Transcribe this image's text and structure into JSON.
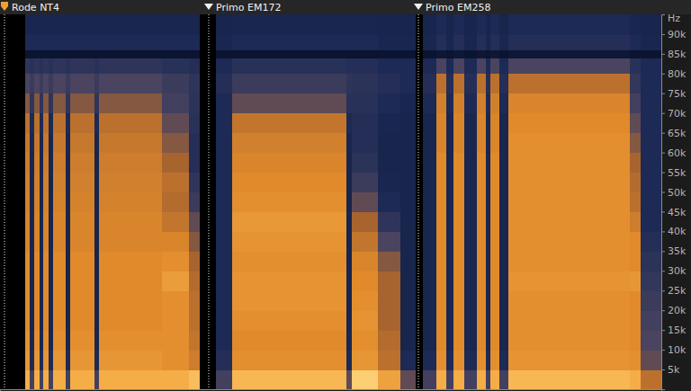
{
  "chart_data": {
    "type": "heatmap",
    "y_label": "Hz",
    "tick_labels": "y",
    "xlim": [
      0,
      73.5
    ],
    "ylim": [
      0,
      95000
    ],
    "zlim": [
      0,
      1
    ],
    "yticks": [
      {
        "value": 5000,
        "label": "5k"
      },
      {
        "value": 10000,
        "label": "10k"
      },
      {
        "value": 15000,
        "label": "15k"
      },
      {
        "value": 20000,
        "label": "20k"
      },
      {
        "value": 25000,
        "label": "25k"
      },
      {
        "value": 30000,
        "label": "30k"
      },
      {
        "value": 35000,
        "label": "35k"
      },
      {
        "value": 40000,
        "label": "40k"
      },
      {
        "value": 45000,
        "label": "45k"
      },
      {
        "value": 50000,
        "label": "50k"
      },
      {
        "value": 55000,
        "label": "55k"
      },
      {
        "value": 60000,
        "label": "60k"
      },
      {
        "value": 65000,
        "label": "65k"
      },
      {
        "value": 70000,
        "label": "70k"
      },
      {
        "value": 75000,
        "label": "75k"
      },
      {
        "value": 80000,
        "label": "80k"
      },
      {
        "value": 85000,
        "label": "85k"
      },
      {
        "value": 90000,
        "label": "90k"
      }
    ],
    "annotations": [
      {
        "label": "Rode NT4",
        "x": 0.5
      },
      {
        "label": "Primo EM172",
        "x": 23.2
      },
      {
        "label": "Primo EM258",
        "x": 46.5
      }
    ],
    "x_bins": [
      0,
      2.8,
      3.3,
      3.8,
      4.4,
      4.8,
      5.4,
      5.9,
      7.3,
      7.8,
      10.5,
      11,
      18,
      21,
      22.2,
      24,
      25.8,
      38.5,
      39.1,
      42,
      44.5,
      46.2,
      47,
      48.5,
      49.6,
      50.4,
      51.6,
      53,
      54,
      54.5,
      55.5,
      56.5,
      70,
      71.2,
      73.5
    ],
    "y_bins": [
      0,
      5000,
      10000,
      15000,
      20000,
      25000,
      30000,
      35000,
      40000,
      45000,
      50000,
      55000,
      60000,
      65000,
      70000,
      75000,
      80000,
      84000,
      86000,
      90000,
      95000
    ],
    "cells": [
      [
        0,
        0,
        0,
        0,
        0,
        0,
        0,
        0,
        0,
        0,
        0,
        0,
        0,
        0,
        0,
        0,
        0,
        0,
        0,
        0
      ],
      [
        0.85,
        0.75,
        0.72,
        0.7,
        0.7,
        0.7,
        0.7,
        0.68,
        0.68,
        0.67,
        0.66,
        0.65,
        0.63,
        0.6,
        0.5,
        0.42,
        0.35,
        0.18,
        0.3,
        0.28
      ],
      [
        0.4,
        0.3,
        0.28,
        0.27,
        0.27,
        0.27,
        0.27,
        0.27,
        0.27,
        0.27,
        0.27,
        0.27,
        0.28,
        0.3,
        0.35,
        0.38,
        0.33,
        0.18,
        0.3,
        0.28
      ],
      [
        0.85,
        0.75,
        0.72,
        0.7,
        0.7,
        0.7,
        0.7,
        0.68,
        0.68,
        0.67,
        0.66,
        0.65,
        0.63,
        0.6,
        0.5,
        0.42,
        0.35,
        0.18,
        0.3,
        0.28
      ],
      [
        0.4,
        0.3,
        0.28,
        0.27,
        0.27,
        0.27,
        0.27,
        0.27,
        0.27,
        0.27,
        0.27,
        0.27,
        0.28,
        0.3,
        0.35,
        0.38,
        0.33,
        0.18,
        0.3,
        0.28
      ],
      [
        0.85,
        0.75,
        0.72,
        0.7,
        0.7,
        0.7,
        0.7,
        0.68,
        0.68,
        0.67,
        0.66,
        0.65,
        0.63,
        0.6,
        0.5,
        0.42,
        0.35,
        0.18,
        0.3,
        0.28
      ],
      [
        0.4,
        0.3,
        0.28,
        0.27,
        0.27,
        0.27,
        0.27,
        0.27,
        0.27,
        0.27,
        0.27,
        0.27,
        0.28,
        0.3,
        0.35,
        0.38,
        0.33,
        0.18,
        0.3,
        0.28
      ],
      [
        0.85,
        0.75,
        0.72,
        0.7,
        0.7,
        0.7,
        0.7,
        0.68,
        0.68,
        0.67,
        0.66,
        0.65,
        0.63,
        0.6,
        0.5,
        0.42,
        0.35,
        0.18,
        0.3,
        0.28
      ],
      [
        0.4,
        0.3,
        0.28,
        0.27,
        0.27,
        0.27,
        0.27,
        0.27,
        0.27,
        0.27,
        0.27,
        0.27,
        0.28,
        0.3,
        0.35,
        0.38,
        0.33,
        0.18,
        0.3,
        0.28
      ],
      [
        0.85,
        0.75,
        0.72,
        0.7,
        0.7,
        0.7,
        0.7,
        0.68,
        0.68,
        0.67,
        0.66,
        0.65,
        0.63,
        0.6,
        0.5,
        0.42,
        0.35,
        0.18,
        0.3,
        0.28
      ],
      [
        0.4,
        0.3,
        0.28,
        0.27,
        0.27,
        0.27,
        0.27,
        0.27,
        0.27,
        0.27,
        0.27,
        0.27,
        0.28,
        0.3,
        0.35,
        0.38,
        0.33,
        0.18,
        0.3,
        0.28
      ],
      [
        0.85,
        0.75,
        0.72,
        0.7,
        0.7,
        0.7,
        0.7,
        0.68,
        0.68,
        0.67,
        0.66,
        0.65,
        0.63,
        0.6,
        0.5,
        0.42,
        0.35,
        0.18,
        0.3,
        0.28
      ],
      [
        0.85,
        0.72,
        0.72,
        0.72,
        0.72,
        0.78,
        0.72,
        0.68,
        0.62,
        0.58,
        0.6,
        0.55,
        0.5,
        0.45,
        0.4,
        0.38,
        0.33,
        0.18,
        0.3,
        0.28
      ],
      [
        0.9,
        0.65,
        0.62,
        0.6,
        0.6,
        0.58,
        0.55,
        0.5,
        0.45,
        0.38,
        0.35,
        0.32,
        0.32,
        0.33,
        0.34,
        0.35,
        0.32,
        0.18,
        0.3,
        0.28
      ],
      [
        0,
        0,
        0,
        0,
        0,
        0,
        0,
        0,
        0,
        0,
        0,
        0,
        0,
        0,
        0,
        0,
        0,
        0,
        0,
        0
      ],
      [
        0.4,
        0.32,
        0.3,
        0.3,
        0.3,
        0.3,
        0.3,
        0.3,
        0.3,
        0.3,
        0.3,
        0.3,
        0.3,
        0.3,
        0.3,
        0.32,
        0.3,
        0.18,
        0.28,
        0.27
      ],
      [
        0.88,
        0.72,
        0.7,
        0.72,
        0.74,
        0.74,
        0.72,
        0.74,
        0.76,
        0.72,
        0.7,
        0.68,
        0.66,
        0.62,
        0.45,
        0.38,
        0.33,
        0.18,
        0.3,
        0.28
      ],
      [
        0.45,
        0.3,
        0.28,
        0.27,
        0.27,
        0.27,
        0.27,
        0.27,
        0.27,
        0.27,
        0.27,
        0.27,
        0.28,
        0.3,
        0.33,
        0.35,
        0.32,
        0.18,
        0.3,
        0.28
      ],
      [
        0.95,
        0.75,
        0.72,
        0.74,
        0.72,
        0.7,
        0.68,
        0.62,
        0.55,
        0.45,
        0.38,
        0.34,
        0.32,
        0.32,
        0.33,
        0.34,
        0.32,
        0.18,
        0.3,
        0.28
      ],
      [
        0.8,
        0.6,
        0.58,
        0.55,
        0.55,
        0.55,
        0.5,
        0.42,
        0.35,
        0.3,
        0.28,
        0.27,
        0.27,
        0.28,
        0.3,
        0.32,
        0.3,
        0.18,
        0.28,
        0.27
      ],
      [
        0.45,
        0.3,
        0.27,
        0.27,
        0.27,
        0.27,
        0.27,
        0.27,
        0.27,
        0.27,
        0.27,
        0.27,
        0.27,
        0.27,
        0.28,
        0.3,
        0.3,
        0.18,
        0.28,
        0.27
      ],
      [
        0,
        0,
        0,
        0,
        0,
        0,
        0,
        0,
        0,
        0,
        0,
        0,
        0,
        0,
        0,
        0,
        0,
        0,
        0,
        0
      ],
      [
        0.4,
        0.3,
        0.28,
        0.28,
        0.28,
        0.28,
        0.28,
        0.28,
        0.28,
        0.28,
        0.28,
        0.28,
        0.28,
        0.28,
        0.3,
        0.32,
        0.3,
        0.18,
        0.28,
        0.27
      ],
      [
        0.85,
        0.72,
        0.7,
        0.7,
        0.7,
        0.7,
        0.7,
        0.7,
        0.7,
        0.7,
        0.7,
        0.7,
        0.68,
        0.68,
        0.66,
        0.6,
        0.42,
        0.2,
        0.32,
        0.3
      ],
      [
        0.4,
        0.3,
        0.28,
        0.28,
        0.28,
        0.28,
        0.28,
        0.28,
        0.28,
        0.28,
        0.28,
        0.28,
        0.28,
        0.28,
        0.3,
        0.32,
        0.3,
        0.18,
        0.28,
        0.27
      ],
      [
        0.85,
        0.72,
        0.7,
        0.7,
        0.7,
        0.7,
        0.7,
        0.7,
        0.7,
        0.7,
        0.7,
        0.7,
        0.68,
        0.68,
        0.66,
        0.6,
        0.42,
        0.2,
        0.32,
        0.3
      ],
      [
        0.4,
        0.3,
        0.28,
        0.28,
        0.28,
        0.28,
        0.28,
        0.28,
        0.28,
        0.28,
        0.28,
        0.28,
        0.28,
        0.28,
        0.3,
        0.32,
        0.3,
        0.18,
        0.28,
        0.27
      ],
      [
        0.85,
        0.72,
        0.7,
        0.7,
        0.7,
        0.7,
        0.7,
        0.7,
        0.7,
        0.7,
        0.7,
        0.7,
        0.68,
        0.68,
        0.66,
        0.6,
        0.42,
        0.2,
        0.32,
        0.3
      ],
      [
        0.4,
        0.3,
        0.28,
        0.28,
        0.28,
        0.28,
        0.28,
        0.28,
        0.28,
        0.28,
        0.28,
        0.28,
        0.28,
        0.28,
        0.3,
        0.32,
        0.3,
        0.18,
        0.28,
        0.27
      ],
      [
        0.85,
        0.72,
        0.7,
        0.7,
        0.7,
        0.7,
        0.7,
        0.7,
        0.7,
        0.7,
        0.7,
        0.7,
        0.68,
        0.68,
        0.66,
        0.6,
        0.42,
        0.2,
        0.32,
        0.3
      ],
      [
        0.4,
        0.3,
        0.28,
        0.28,
        0.28,
        0.28,
        0.28,
        0.28,
        0.28,
        0.28,
        0.28,
        0.28,
        0.28,
        0.28,
        0.3,
        0.32,
        0.3,
        0.18,
        0.28,
        0.27
      ],
      [
        0.88,
        0.74,
        0.72,
        0.72,
        0.72,
        0.74,
        0.72,
        0.72,
        0.72,
        0.72,
        0.72,
        0.72,
        0.72,
        0.7,
        0.68,
        0.6,
        0.42,
        0.2,
        0.32,
        0.3
      ],
      [
        0.85,
        0.72,
        0.7,
        0.7,
        0.7,
        0.75,
        0.7,
        0.7,
        0.65,
        0.6,
        0.58,
        0.55,
        0.5,
        0.45,
        0.4,
        0.36,
        0.33,
        0.18,
        0.3,
        0.28
      ],
      [
        0.6,
        0.45,
        0.42,
        0.4,
        0.38,
        0.36,
        0.34,
        0.32,
        0.3,
        0.3,
        0.3,
        0.3,
        0.3,
        0.3,
        0.3,
        0.3,
        0.3,
        0.18,
        0.28,
        0.27
      ]
    ]
  }
}
